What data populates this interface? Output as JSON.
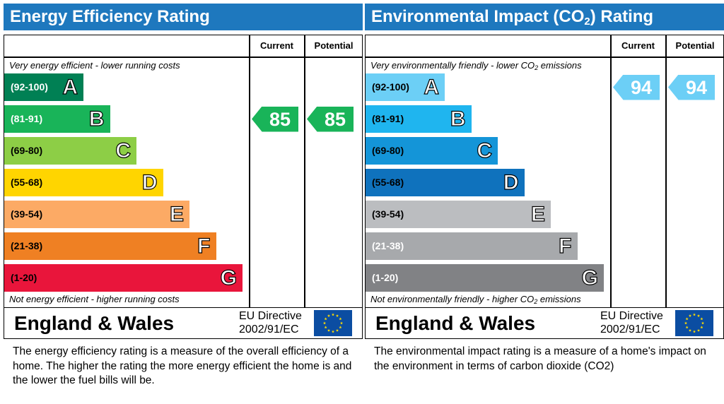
{
  "chart_data": [
    {
      "type": "bar",
      "title": "Energy Efficiency Rating",
      "columns": [
        "Current",
        "Potential"
      ],
      "top_caption": "Very energy efficient - lower running costs",
      "bottom_caption": "Not energy efficient - higher running costs",
      "bands": [
        {
          "range": "(92-100)",
          "letter": "A",
          "color": "#008054",
          "range_color": "#ffffff"
        },
        {
          "range": "(81-91)",
          "letter": "B",
          "color": "#19b459",
          "range_color": "#ffffff"
        },
        {
          "range": "(69-80)",
          "letter": "C",
          "color": "#8dce46",
          "range_color": "#000000"
        },
        {
          "range": "(55-68)",
          "letter": "D",
          "color": "#ffd500",
          "range_color": "#000000"
        },
        {
          "range": "(39-54)",
          "letter": "E",
          "color": "#fcaa65",
          "range_color": "#000000"
        },
        {
          "range": "(21-38)",
          "letter": "F",
          "color": "#ef8023",
          "range_color": "#000000"
        },
        {
          "range": "(1-20)",
          "letter": "G",
          "color": "#e9153b",
          "range_color": "#000000"
        }
      ],
      "current": {
        "value": 85,
        "band": "B",
        "color": "#19b459"
      },
      "potential": {
        "value": 85,
        "band": "B",
        "color": "#19b459"
      },
      "region": "England & Wales",
      "directive_line1": "EU Directive",
      "directive_line2": "2002/91/EC",
      "description": "The energy efficiency rating is a measure of the overall efficiency of a home.  The higher the rating the more energy efficient the home is and the lower the fuel bills will be."
    },
    {
      "type": "bar",
      "title_prefix": "Environmental Impact (CO",
      "title_sub": "2",
      "title_suffix": ") Rating",
      "columns": [
        "Current",
        "Potential"
      ],
      "top_caption_prefix": "Very environmentally friendly - lower CO",
      "top_caption_sub": "2",
      "top_caption_suffix": " emissions",
      "bottom_caption_prefix": "Not environmentally friendly - higher CO",
      "bottom_caption_sub": "2",
      "bottom_caption_suffix": " emissions",
      "bands": [
        {
          "range": "(92-100)",
          "letter": "A",
          "color": "#6ccff6",
          "range_color": "#000000"
        },
        {
          "range": "(81-91)",
          "letter": "B",
          "color": "#1fb5ef",
          "range_color": "#000000"
        },
        {
          "range": "(69-80)",
          "letter": "C",
          "color": "#1495d8",
          "range_color": "#000000"
        },
        {
          "range": "(55-68)",
          "letter": "D",
          "color": "#0f72bd",
          "range_color": "#000000"
        },
        {
          "range": "(39-54)",
          "letter": "E",
          "color": "#bbbdc0",
          "range_color": "#000000"
        },
        {
          "range": "(21-38)",
          "letter": "F",
          "color": "#a7a9ac",
          "range_color": "#ffffff"
        },
        {
          "range": "(1-20)",
          "letter": "G",
          "color": "#818285",
          "range_color": "#ffffff"
        }
      ],
      "current": {
        "value": 94,
        "band": "A",
        "color": "#6ccff6"
      },
      "potential": {
        "value": 94,
        "band": "A",
        "color": "#6ccff6"
      },
      "region": "England & Wales",
      "directive_line1": "EU Directive",
      "directive_line2": "2002/91/EC",
      "description": "The environmental impact rating is a measure of a home's impact on the environment in terms of carbon dioxide (CO2)"
    }
  ]
}
